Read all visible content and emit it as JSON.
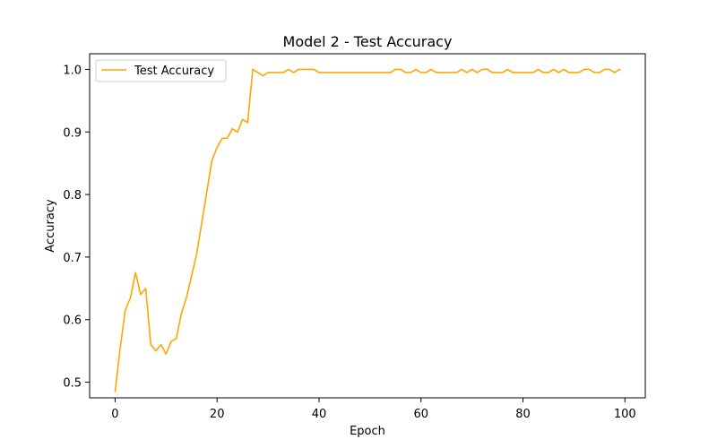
{
  "chart_data": {
    "type": "line",
    "title": "Model 2 - Test Accuracy",
    "xlabel": "Epoch",
    "ylabel": "Accuracy",
    "xlim": [
      -5,
      104
    ],
    "ylim": [
      0.475,
      1.025
    ],
    "xticks": [
      0,
      20,
      40,
      60,
      80,
      100
    ],
    "xtick_labels": [
      "0",
      "20",
      "40",
      "60",
      "80",
      "100"
    ],
    "yticks": [
      0.5,
      0.6,
      0.7,
      0.8,
      0.9,
      1.0
    ],
    "ytick_labels": [
      "0.5",
      "0.6",
      "0.7",
      "0.8",
      "0.9",
      "1.0"
    ],
    "grid": false,
    "legend_position": "upper-left",
    "series": [
      {
        "name": "Test Accuracy",
        "color": "#ffa500",
        "x": [
          0,
          1,
          2,
          3,
          4,
          5,
          6,
          7,
          8,
          9,
          10,
          11,
          12,
          13,
          14,
          15,
          16,
          17,
          18,
          19,
          20,
          21,
          22,
          23,
          24,
          25,
          26,
          27,
          28,
          29,
          30,
          31,
          32,
          33,
          34,
          35,
          36,
          37,
          38,
          39,
          40,
          41,
          42,
          43,
          44,
          45,
          46,
          47,
          48,
          49,
          50,
          51,
          52,
          53,
          54,
          55,
          56,
          57,
          58,
          59,
          60,
          61,
          62,
          63,
          64,
          65,
          66,
          67,
          68,
          69,
          70,
          71,
          72,
          73,
          74,
          75,
          76,
          77,
          78,
          79,
          80,
          81,
          82,
          83,
          84,
          85,
          86,
          87,
          88,
          89,
          90,
          91,
          92,
          93,
          94,
          95,
          96,
          97,
          98,
          99
        ],
        "values": [
          0.485,
          0.555,
          0.615,
          0.635,
          0.675,
          0.64,
          0.65,
          0.56,
          0.55,
          0.56,
          0.545,
          0.565,
          0.57,
          0.61,
          0.635,
          0.67,
          0.705,
          0.755,
          0.805,
          0.855,
          0.875,
          0.89,
          0.89,
          0.905,
          0.9,
          0.92,
          0.915,
          1.0,
          0.995,
          0.99,
          0.995,
          0.995,
          0.995,
          0.995,
          1.0,
          0.995,
          1.0,
          1.0,
          1.0,
          1.0,
          0.995,
          0.995,
          0.995,
          0.995,
          0.995,
          0.995,
          0.995,
          0.995,
          0.995,
          0.995,
          0.995,
          0.995,
          0.995,
          0.995,
          0.995,
          1.0,
          1.0,
          0.995,
          0.995,
          1.0,
          0.995,
          0.995,
          1.0,
          0.995,
          0.995,
          0.995,
          0.995,
          0.995,
          1.0,
          0.995,
          1.0,
          0.995,
          1.0,
          1.0,
          0.995,
          0.995,
          0.995,
          1.0,
          0.995,
          0.995,
          0.995,
          0.995,
          0.995,
          1.0,
          0.995,
          0.995,
          1.0,
          0.995,
          1.0,
          0.995,
          0.995,
          0.995,
          1.0,
          1.0,
          0.995,
          0.995,
          1.0,
          1.0,
          0.995,
          1.0
        ]
      }
    ]
  }
}
